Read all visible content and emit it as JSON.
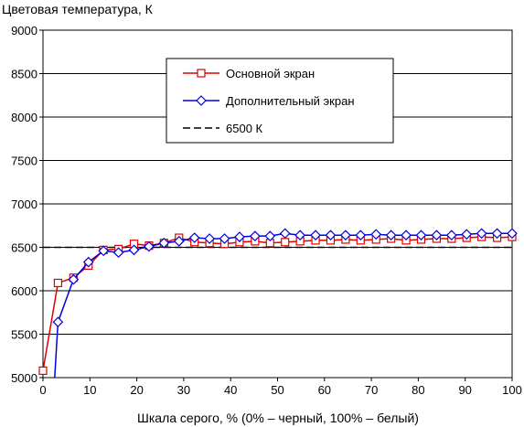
{
  "chart_data": {
    "type": "line",
    "title": "",
    "ylabel": "Цветовая температура, К",
    "xlabel": "Шкала серого, % (0% – черный, 100% – белый)",
    "xlim": [
      0,
      100
    ],
    "ylim": [
      5000,
      9000
    ],
    "x_ticks": [
      0,
      10,
      20,
      30,
      40,
      50,
      60,
      70,
      80,
      90,
      100
    ],
    "y_ticks": [
      5000,
      5500,
      6000,
      6500,
      7000,
      7500,
      8000,
      8500,
      9000
    ],
    "grid": "horizontal",
    "legend_position": "top-center",
    "series": [
      {
        "name": "Основной экран",
        "color": "#e00000",
        "marker": "square",
        "x": [
          0,
          3.2,
          6.5,
          9.7,
          12.9,
          16.1,
          19.4,
          22.6,
          25.8,
          29.0,
          32.3,
          35.5,
          38.7,
          41.9,
          45.2,
          48.4,
          51.6,
          54.8,
          58.1,
          61.3,
          64.5,
          67.7,
          71.0,
          74.2,
          77.4,
          80.6,
          83.9,
          87.1,
          90.3,
          93.5,
          96.8,
          100
        ],
        "values": [
          5080,
          6090,
          6150,
          6290,
          6470,
          6480,
          6540,
          6520,
          6550,
          6610,
          6560,
          6550,
          6540,
          6560,
          6570,
          6550,
          6560,
          6570,
          6580,
          6580,
          6590,
          6580,
          6590,
          6600,
          6580,
          6590,
          6600,
          6600,
          6610,
          6620,
          6610,
          6620
        ]
      },
      {
        "name": "Дополнительный экран",
        "color": "#0000e0",
        "marker": "diamond",
        "x": [
          2.5,
          3.2,
          6.5,
          9.7,
          12.9,
          16.1,
          19.4,
          22.6,
          25.8,
          29.0,
          32.3,
          35.5,
          38.7,
          41.9,
          45.2,
          48.4,
          51.6,
          54.8,
          58.1,
          61.3,
          64.5,
          67.7,
          71.0,
          74.2,
          77.4,
          80.6,
          83.9,
          87.1,
          90.3,
          93.5,
          96.8,
          100
        ],
        "values": [
          5000,
          5640,
          6130,
          6330,
          6460,
          6440,
          6470,
          6510,
          6550,
          6570,
          6610,
          6600,
          6600,
          6620,
          6630,
          6630,
          6660,
          6640,
          6640,
          6640,
          6640,
          6640,
          6650,
          6640,
          6640,
          6640,
          6640,
          6640,
          6650,
          6660,
          6660,
          6660
        ]
      },
      {
        "name": "6500 К",
        "color": "#000000",
        "style": "dashed",
        "x": [
          0,
          100
        ],
        "values": [
          6500,
          6500
        ]
      }
    ]
  }
}
